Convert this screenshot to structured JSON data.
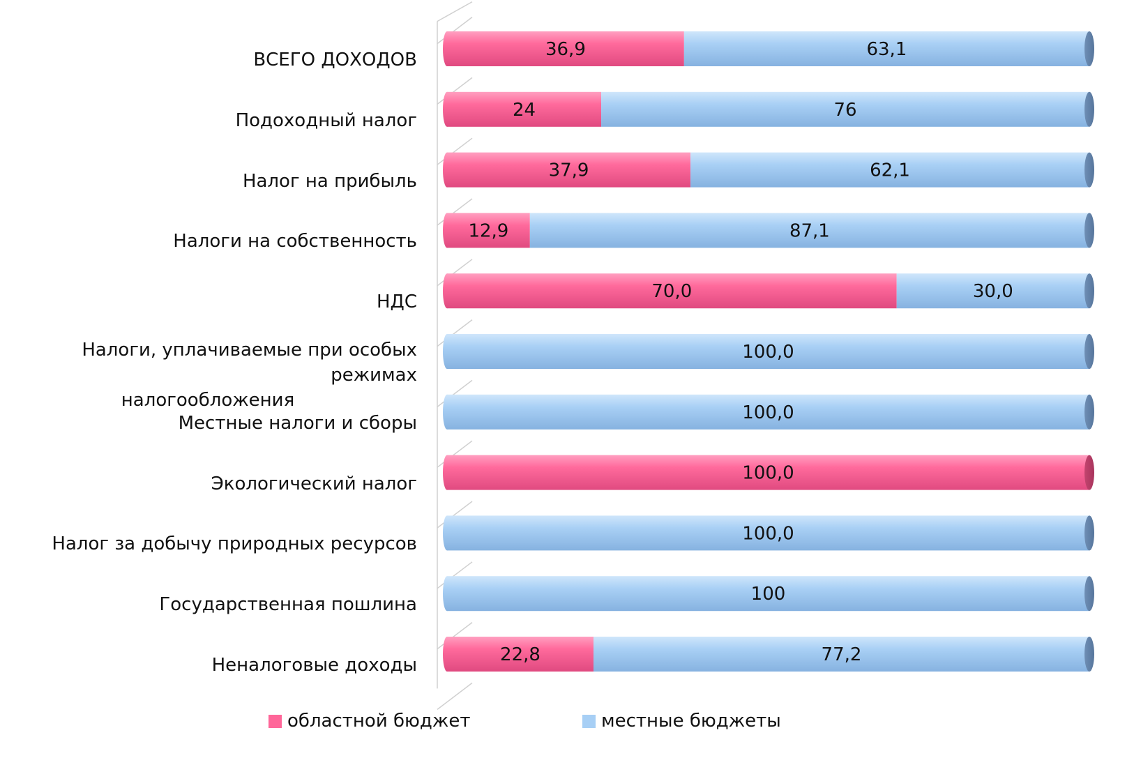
{
  "chart_data": {
    "type": "bar",
    "orientation": "horizontal",
    "stacked": "percent",
    "categories": [
      "ВСЕГО ДОХОДОВ",
      "Подоходный налог",
      "Налог на прибыль",
      "Налоги на собственность",
      "НДС",
      "Налоги, уплачиваемые при особых режимах налогообложения",
      "Местные налоги и сборы",
      "Экологический налог",
      "Налог за добычу природных ресурсов",
      "Государственная пошлина",
      "Неналоговые доходы"
    ],
    "category_label_lines": [
      [
        "ВСЕГО ДОХОДОВ"
      ],
      [
        "Подоходный налог"
      ],
      [
        "Налог на прибыль"
      ],
      [
        "Налоги на собственность"
      ],
      [
        "НДС"
      ],
      [
        "Налоги, уплачиваемые при особых режимах",
        "налогообложения"
      ],
      [
        "Местные налоги и сборы"
      ],
      [
        "Экологический налог"
      ],
      [
        "Налог за добычу природных ресурсов"
      ],
      [
        "Государственная пошлина"
      ],
      [
        "Неналоговые доходы"
      ]
    ],
    "series": [
      {
        "name": "областной бюджет",
        "color": "#ff6699",
        "values": [
          36.9,
          24,
          37.9,
          12.9,
          70.0,
          0,
          0,
          100.0,
          0,
          0,
          22.8
        ],
        "labels": [
          "36,9",
          "24",
          "37,9",
          "12,9",
          "70,0",
          "",
          "",
          "100,0",
          "",
          "",
          "22,8"
        ]
      },
      {
        "name": "местные бюджеты",
        "color": "#a7cff5",
        "values": [
          63.1,
          76,
          62.1,
          87.1,
          30.0,
          100.0,
          100.0,
          0,
          100.0,
          100,
          77.2
        ],
        "labels": [
          "63,1",
          "76",
          "62,1",
          "87,1",
          "30,0",
          "100,0",
          "100,0",
          "",
          "100,0",
          "100",
          "77,2"
        ]
      }
    ],
    "xlim": [
      0,
      100
    ],
    "legend_position": "bottom",
    "grid": false
  }
}
